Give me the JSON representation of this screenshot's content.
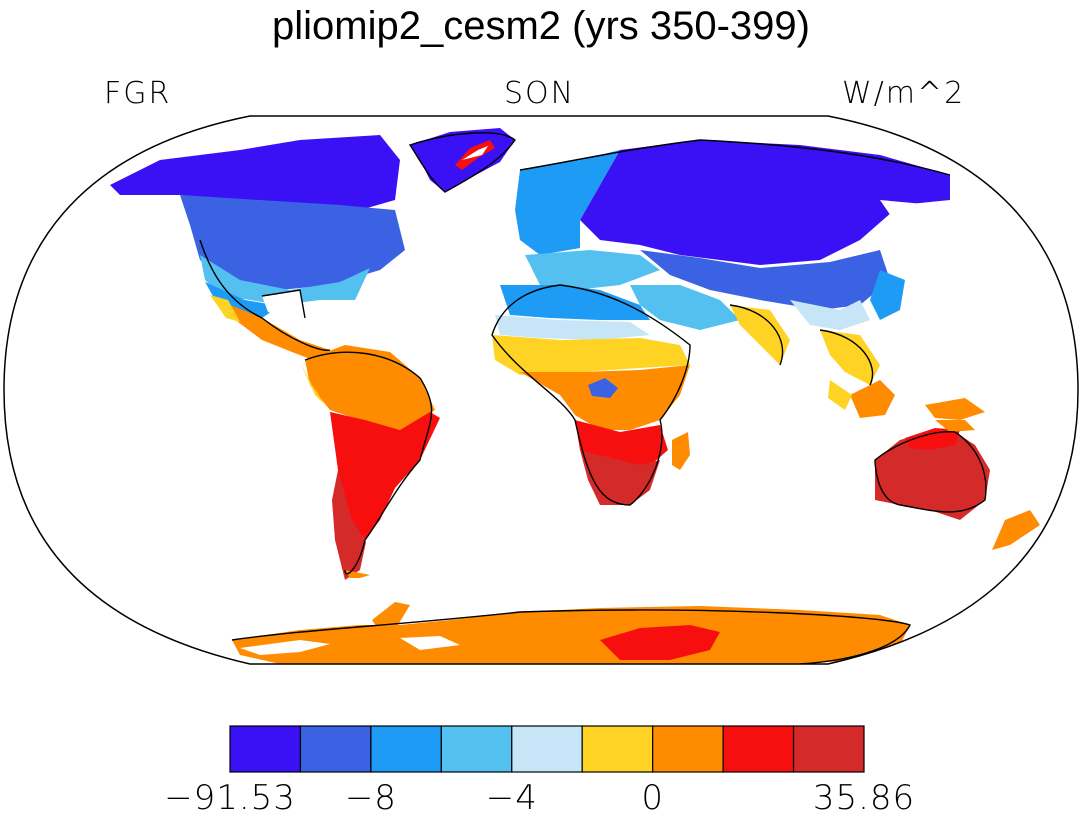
{
  "title": "pliomip2_cesm2 (yrs 350-399)",
  "left_label": "FGR",
  "center_label": "SON",
  "right_label": "W/m^2",
  "colorbar": {
    "colors": [
      "#3a10f5",
      "#3b62e2",
      "#1e9bf5",
      "#54c0f0",
      "#c6e6f7",
      "#ffd324",
      "#ff8c00",
      "#f70f0f",
      "#d42a2a"
    ],
    "labels": [
      "−91.53",
      "−8",
      "−4",
      "0",
      "35.86"
    ]
  },
  "palette": {
    "ocean": "#ffffff",
    "coast": "#000000",
    "ice_white": "#ffffff"
  }
}
